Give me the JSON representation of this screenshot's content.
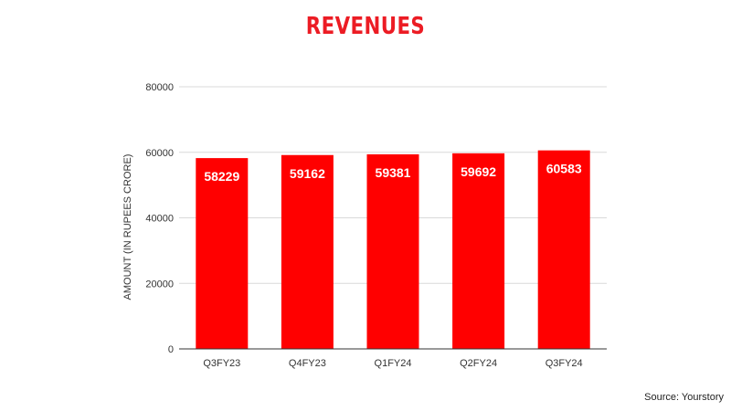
{
  "chart_data": {
    "type": "bar",
    "title": "REVENUES",
    "xlabel": "",
    "ylabel": "AMOUNT (IN RUPEES CRORE)",
    "categories": [
      "Q3FY23",
      "Q4FY23",
      "Q1FY24",
      "Q2FY24",
      "Q3FY24"
    ],
    "values": [
      58229,
      59162,
      59381,
      59692,
      60583
    ],
    "data_labels": [
      "58229",
      "59162",
      "59381",
      "59692",
      "60583"
    ],
    "ylim": [
      0,
      80000
    ],
    "yticks": [
      0,
      20000,
      40000,
      60000,
      80000
    ],
    "ytick_labels": [
      "0",
      "20000",
      "40000",
      "60000",
      "80000"
    ],
    "grid": true,
    "legend": "none",
    "bar_color": "#ff0000",
    "title_color": "#ec1c24"
  },
  "source": "Source: Yourstory"
}
